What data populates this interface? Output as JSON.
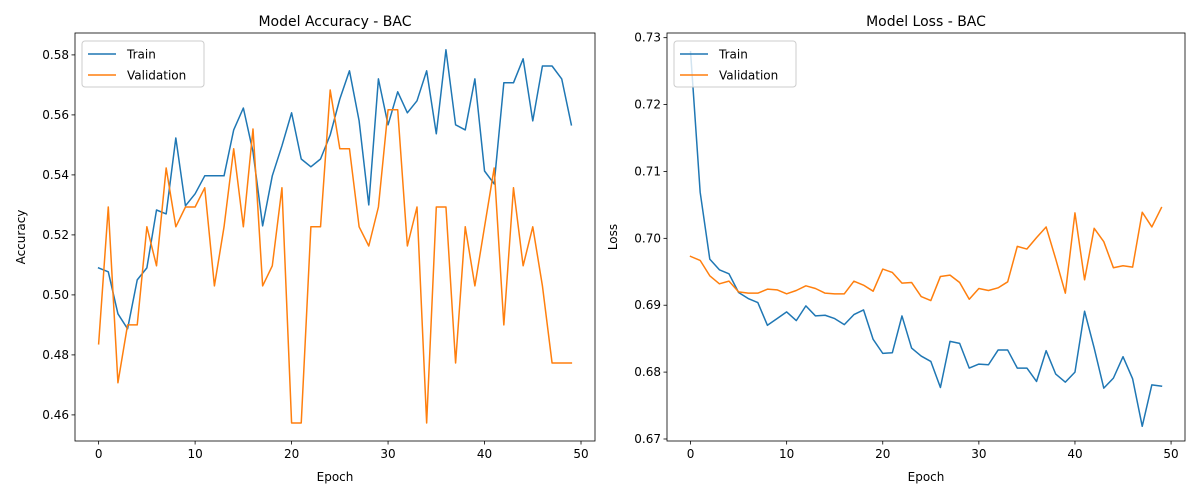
{
  "colors": {
    "train": "#1f77b4",
    "validation": "#ff7f0e",
    "axis": "#000000",
    "legend_border": "#cccccc"
  },
  "chart_data": [
    {
      "type": "line",
      "title": "Model Accuracy - BAC",
      "xlabel": "Epoch",
      "ylabel": "Accuracy",
      "xlim": [
        -2.45,
        51.45
      ],
      "ylim": [
        0.4513,
        0.5873
      ],
      "xticks": [
        0,
        10,
        20,
        30,
        40,
        50
      ],
      "xtick_labels": [
        "0",
        "10",
        "20",
        "30",
        "40",
        "50"
      ],
      "yticks": [
        0.46,
        0.48,
        0.5,
        0.52,
        0.54,
        0.56,
        0.58
      ],
      "ytick_labels": [
        "0.46",
        "0.48",
        "0.50",
        "0.52",
        "0.54",
        "0.56",
        "0.58"
      ],
      "legend_position": "upper left",
      "grid": false,
      "x": [
        0,
        1,
        2,
        3,
        4,
        5,
        6,
        7,
        8,
        9,
        10,
        11,
        12,
        13,
        14,
        15,
        16,
        17,
        18,
        19,
        20,
        21,
        22,
        23,
        24,
        25,
        26,
        27,
        28,
        29,
        30,
        31,
        32,
        33,
        34,
        35,
        36,
        37,
        38,
        39,
        40,
        41,
        42,
        43,
        44,
        45,
        46,
        47,
        48,
        49
      ],
      "series": [
        {
          "name": "Train",
          "color_key": "train",
          "values": [
            0.509,
            0.5077,
            0.4937,
            0.4887,
            0.505,
            0.509,
            0.5283,
            0.527,
            0.5523,
            0.5297,
            0.5337,
            0.5397,
            0.5397,
            0.5397,
            0.555,
            0.5623,
            0.5477,
            0.523,
            0.5397,
            0.5497,
            0.5607,
            0.5453,
            0.5427,
            0.5453,
            0.5533,
            0.5653,
            0.5747,
            0.558,
            0.53,
            0.572,
            0.5567,
            0.5677,
            0.5607,
            0.5647,
            0.5747,
            0.5537,
            0.5817,
            0.5567,
            0.555,
            0.572,
            0.5413,
            0.537,
            0.5707,
            0.5707,
            0.5787,
            0.558,
            0.5763,
            0.5763,
            0.572,
            0.5567
          ]
        },
        {
          "name": "Validation",
          "color_key": "validation",
          "values": [
            0.4837,
            0.5293,
            0.4707,
            0.49,
            0.49,
            0.5227,
            0.5097,
            0.5423,
            0.5227,
            0.5293,
            0.5293,
            0.5357,
            0.503,
            0.5227,
            0.5487,
            0.5227,
            0.5553,
            0.503,
            0.5097,
            0.5357,
            0.4573,
            0.4573,
            0.5227,
            0.5227,
            0.5683,
            0.5487,
            0.5487,
            0.5227,
            0.5163,
            0.5293,
            0.5617,
            0.5617,
            0.5163,
            0.5293,
            0.4573,
            0.5293,
            0.5293,
            0.4773,
            0.5227,
            0.503,
            0.5227,
            0.5423,
            0.49,
            0.5357,
            0.5097,
            0.5227,
            0.503,
            0.4773,
            0.4773,
            0.4773
          ]
        }
      ]
    },
    {
      "type": "line",
      "title": "Model Loss - BAC",
      "xlabel": "Epoch",
      "ylabel": "Loss",
      "xlim": [
        -2.45,
        51.45
      ],
      "ylim": [
        0.6697,
        0.7307
      ],
      "xticks": [
        0,
        10,
        20,
        30,
        40,
        50
      ],
      "xtick_labels": [
        "0",
        "10",
        "20",
        "30",
        "40",
        "50"
      ],
      "yticks": [
        0.67,
        0.68,
        0.69,
        0.7,
        0.71,
        0.72,
        0.73
      ],
      "ytick_labels": [
        "0.67",
        "0.68",
        "0.69",
        "0.70",
        "0.71",
        "0.72",
        "0.73"
      ],
      "legend_position": "upper left",
      "grid": false,
      "x": [
        0,
        1,
        2,
        3,
        4,
        5,
        6,
        7,
        8,
        9,
        10,
        11,
        12,
        13,
        14,
        15,
        16,
        17,
        18,
        19,
        20,
        21,
        22,
        23,
        24,
        25,
        26,
        27,
        28,
        29,
        30,
        31,
        32,
        33,
        34,
        35,
        36,
        37,
        38,
        39,
        40,
        41,
        42,
        43,
        44,
        45,
        46,
        47,
        48,
        49
      ],
      "series": [
        {
          "name": "Train",
          "color_key": "train",
          "values": [
            0.7279,
            0.7069,
            0.6969,
            0.6953,
            0.6947,
            0.6919,
            0.691,
            0.6904,
            0.687,
            0.688,
            0.689,
            0.6877,
            0.6899,
            0.6884,
            0.6885,
            0.688,
            0.6871,
            0.6886,
            0.6893,
            0.6849,
            0.6828,
            0.6829,
            0.6884,
            0.6836,
            0.6824,
            0.6816,
            0.6777,
            0.6846,
            0.6843,
            0.6806,
            0.6812,
            0.6811,
            0.6833,
            0.6833,
            0.6806,
            0.6806,
            0.6786,
            0.6832,
            0.6797,
            0.6785,
            0.68,
            0.6891,
            0.6836,
            0.6776,
            0.6791,
            0.6823,
            0.679,
            0.6719,
            0.6781,
            0.6779
          ]
        },
        {
          "name": "Validation",
          "color_key": "validation",
          "values": [
            0.6973,
            0.6967,
            0.6944,
            0.6932,
            0.6936,
            0.692,
            0.6918,
            0.6918,
            0.6924,
            0.6923,
            0.6917,
            0.6922,
            0.6929,
            0.6925,
            0.6918,
            0.6917,
            0.6917,
            0.6936,
            0.693,
            0.6921,
            0.6954,
            0.6949,
            0.6933,
            0.6934,
            0.6913,
            0.6907,
            0.6943,
            0.6945,
            0.6934,
            0.6909,
            0.6925,
            0.6922,
            0.6926,
            0.6935,
            0.6988,
            0.6984,
            0.7001,
            0.7017,
            0.6969,
            0.6918,
            0.7038,
            0.6938,
            0.7015,
            0.6995,
            0.6956,
            0.6959,
            0.6957,
            0.7039,
            0.7017,
            0.7046
          ]
        }
      ]
    }
  ]
}
